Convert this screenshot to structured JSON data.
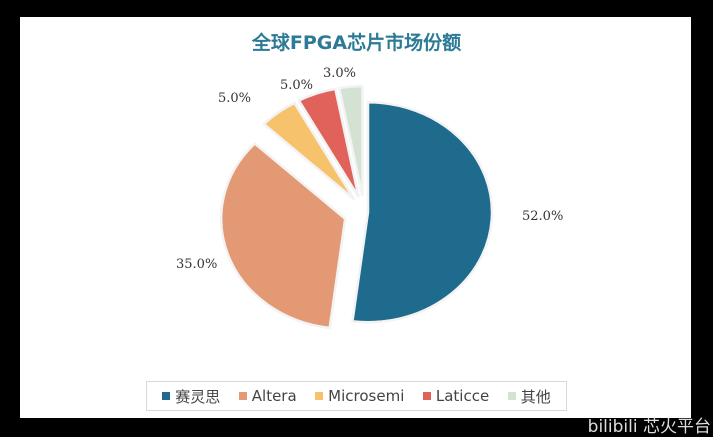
{
  "chart_data": {
    "type": "pie",
    "title": "全球FPGA芯片市场份额",
    "slices": [
      {
        "name": "赛灵思",
        "value": 52.0,
        "label": "52.0%",
        "color": "#1f6b8e"
      },
      {
        "name": "Altera",
        "value": 35.0,
        "label": "35.0%",
        "color": "#e39a74"
      },
      {
        "name": "Microsemi",
        "value": 5.0,
        "label": "5.0%",
        "color": "#f7c26c"
      },
      {
        "name": "Laticce",
        "value": 5.0,
        "label": "5.0%",
        "color": "#e0625a"
      },
      {
        "name": "其他",
        "value": 3.0,
        "label": "3.0%",
        "color": "#d3e2d2"
      }
    ],
    "legend_position": "bottom",
    "exploded": true
  },
  "watermark": "bilibili 芯火平台"
}
